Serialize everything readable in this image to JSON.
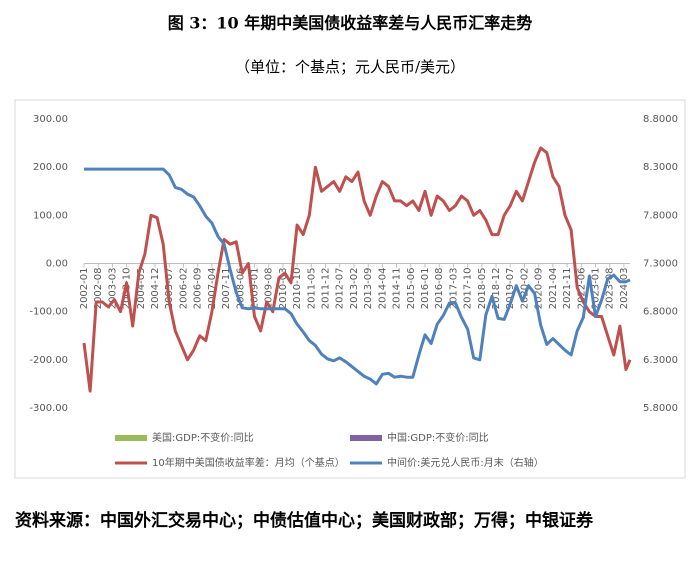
{
  "chart_data": {
    "type": "line",
    "title": "图 3：10 年期中美国债收益率差与人民币汇率走势",
    "subtitle": "（单位：个基点；元人民币/美元）",
    "source": "资料来源：中国外汇交易中心；中债估值中心；美国财政部；万得；中银证券",
    "x": [
      "2002-01",
      "2002-04",
      "2002-07",
      "2002-10",
      "2003-01",
      "2003-04",
      "2003-07",
      "2003-10",
      "2004-01",
      "2004-04",
      "2004-07",
      "2004-10",
      "2005-01",
      "2005-04",
      "2005-07",
      "2005-10",
      "2006-01",
      "2006-04",
      "2006-07",
      "2006-10",
      "2007-01",
      "2007-04",
      "2007-07",
      "2007-10",
      "2008-01",
      "2008-04",
      "2008-07",
      "2008-10",
      "2009-01",
      "2009-04",
      "2009-07",
      "2009-10",
      "2010-01",
      "2010-04",
      "2010-07",
      "2010-10",
      "2011-01",
      "2011-04",
      "2011-07",
      "2011-10",
      "2012-01",
      "2012-04",
      "2012-07",
      "2012-10",
      "2013-01",
      "2013-04",
      "2013-07",
      "2013-10",
      "2014-01",
      "2014-04",
      "2014-07",
      "2014-10",
      "2015-01",
      "2015-04",
      "2015-07",
      "2015-10",
      "2016-01",
      "2016-04",
      "2016-07",
      "2016-10",
      "2017-01",
      "2017-04",
      "2017-07",
      "2017-10",
      "2018-01",
      "2018-04",
      "2018-07",
      "2018-10",
      "2019-01",
      "2019-04",
      "2019-07",
      "2019-10",
      "2020-01",
      "2020-04",
      "2020-07",
      "2020-10",
      "2021-01",
      "2021-04",
      "2021-07",
      "2021-10",
      "2022-01",
      "2022-04",
      "2022-07",
      "2022-10",
      "2023-01",
      "2023-04",
      "2023-07",
      "2023-10",
      "2024-01",
      "2024-04",
      "2024-06"
    ],
    "series": [
      {
        "name": "10年期中美国债收益率差：月均（个基点）",
        "color": "#c0504d",
        "values": [
          -165,
          -265,
          -80,
          -80,
          -90,
          -75,
          -100,
          -40,
          -130,
          -20,
          20,
          100,
          95,
          40,
          -80,
          -140,
          -170,
          -200,
          -180,
          -150,
          -160,
          -100,
          -20,
          50,
          40,
          45,
          -20,
          0,
          -110,
          -140,
          -80,
          -100,
          -30,
          -20,
          -40,
          80,
          60,
          100,
          200,
          150,
          160,
          170,
          150,
          180,
          170,
          190,
          130,
          100,
          140,
          170,
          160,
          130,
          130,
          120,
          130,
          110,
          150,
          100,
          140,
          130,
          110,
          120,
          140,
          130,
          100,
          110,
          90,
          60,
          60,
          100,
          120,
          150,
          130,
          170,
          210,
          240,
          230,
          180,
          160,
          100,
          70,
          -50,
          -80,
          -100,
          -110,
          -110,
          -150,
          -190,
          -130,
          -220,
          -200
        ]
      },
      {
        "name": "中间价:美元兑人民币:月末（右轴）",
        "color": "#4f81bd",
        "axis": "y2",
        "values": [
          8.28,
          8.28,
          8.28,
          8.28,
          8.28,
          8.28,
          8.28,
          8.28,
          8.28,
          8.28,
          8.28,
          8.28,
          8.28,
          8.28,
          8.22,
          8.09,
          8.07,
          8.02,
          7.99,
          7.9,
          7.79,
          7.72,
          7.58,
          7.5,
          7.24,
          7.0,
          6.84,
          6.83,
          6.84,
          6.83,
          6.83,
          6.83,
          6.83,
          6.83,
          6.78,
          6.67,
          6.59,
          6.5,
          6.45,
          6.36,
          6.31,
          6.29,
          6.32,
          6.28,
          6.23,
          6.18,
          6.13,
          6.1,
          6.05,
          6.15,
          6.16,
          6.12,
          6.13,
          6.12,
          6.12,
          6.35,
          6.56,
          6.47,
          6.67,
          6.76,
          6.89,
          6.89,
          6.74,
          6.62,
          6.32,
          6.3,
          6.77,
          6.96,
          6.73,
          6.72,
          6.88,
          7.07,
          6.91,
          7.07,
          6.99,
          6.66,
          6.46,
          6.52,
          6.46,
          6.4,
          6.35,
          6.6,
          6.74,
          7.17,
          6.75,
          6.92,
          7.14,
          7.18,
          7.11,
          7.11,
          7.13
        ]
      }
    ],
    "legend_only": [
      {
        "name": "美国:GDP:不变价:同比",
        "color": "#9bbb59"
      },
      {
        "name": "中国:GDP:不变价:同比",
        "color": "#8064a2"
      }
    ],
    "xlim": [
      "2002-01",
      "2024-06"
    ],
    "xticks": [
      "2002-01",
      "2002-08",
      "2003-03",
      "2003-10",
      "2004-05",
      "2004-12",
      "2005-07",
      "2006-02",
      "2006-09",
      "2007-04",
      "2007-11",
      "2008-06",
      "2009-01",
      "2009-08",
      "2010-03",
      "2010-10",
      "2011-05",
      "2011-12",
      "2012-07",
      "2013-02",
      "2013-09",
      "2014-04",
      "2014-11",
      "2015-06",
      "2016-01",
      "2016-08",
      "2017-03",
      "2017-10",
      "2018-05",
      "2018-12",
      "2019-07",
      "2020-02",
      "2020-09",
      "2021-04",
      "2021-11",
      "2022-06",
      "2023-01",
      "2023-08",
      "2024-03"
    ],
    "ylim": [
      -300,
      300
    ],
    "yticks": [
      {
        "value": -300,
        "label": "-300.00"
      },
      {
        "value": -200,
        "label": "-200.00"
      },
      {
        "value": -100,
        "label": "-100.00"
      },
      {
        "value": 0,
        "label": "0.00"
      },
      {
        "value": 100,
        "label": "100.00"
      },
      {
        "value": 200,
        "label": "200.00"
      },
      {
        "value": 300,
        "label": "300.00"
      }
    ],
    "y2lim": [
      5.8,
      8.8
    ],
    "y2ticks": [
      {
        "value": 5.8,
        "label": "5.8000"
      },
      {
        "value": 6.3,
        "label": "6.3000"
      },
      {
        "value": 6.8,
        "label": "6.8000"
      },
      {
        "value": 7.3,
        "label": "7.3000"
      },
      {
        "value": 7.8,
        "label": "7.8000"
      },
      {
        "value": 8.3,
        "label": "8.3000"
      },
      {
        "value": 8.8,
        "label": "8.8000"
      }
    ],
    "grid": false
  }
}
